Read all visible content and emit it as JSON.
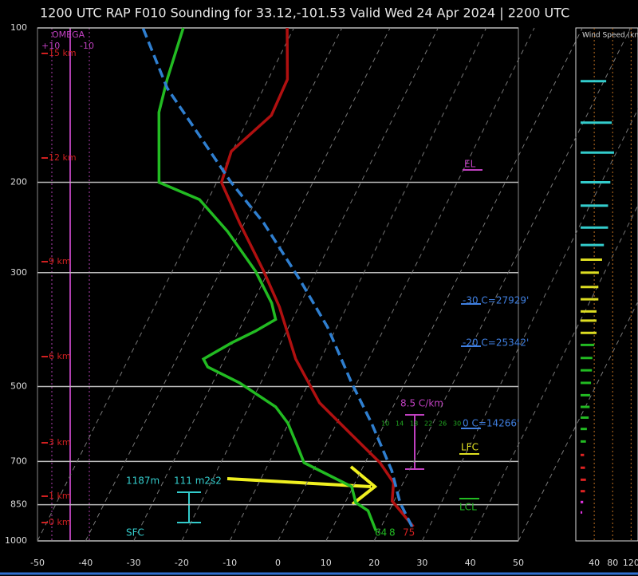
{
  "chart_data": {
    "type": "skewt",
    "title": "1200 UTC RAP F010 Sounding for 33.12,-101.53 Valid  Wed 24 Apr 2024 | 2200 UTC",
    "ylim": [
      1000,
      100
    ],
    "yticks": [
      100,
      200,
      300,
      500,
      700,
      850,
      1000
    ],
    "xlim": [
      -50,
      50
    ],
    "xticks": [
      -50,
      -40,
      -30,
      -20,
      -10,
      0,
      10,
      20,
      30,
      40,
      50
    ],
    "series": [
      {
        "color": "#b01010",
        "pressure": [
          938,
          836,
          770,
          704,
          621,
          538,
          442,
          350,
          298,
          240,
          200,
          174,
          148,
          126,
          100
        ],
        "values": [
          26.7,
          19.6,
          18,
          13.1,
          4.3,
          -5.7,
          -15.2,
          -24,
          -31,
          -41,
          -49,
          -50.2,
          -45.6,
          -46,
          -51.4
        ]
      },
      {
        "color": "#22bb22",
        "pressure": [
          955,
          873,
          842,
          784,
          704,
          655,
          589,
          548,
          492,
          458,
          442,
          411,
          390,
          370,
          344,
          298,
          249,
          216,
          200,
          146,
          126,
          100
        ],
        "values": [
          19.3,
          15.6,
          12.2,
          9.7,
          -2.7,
          -5.7,
          -10.2,
          -14.4,
          -24.4,
          -32.7,
          -34.4,
          -30.2,
          -26.5,
          -23.5,
          -26,
          -32.7,
          -42.7,
          -51.8,
          -62,
          -69.3,
          -71,
          -73
        ]
      },
      {
        "color": "#2f7fd0",
        "dashed": true,
        "pressure": [
          938,
          842,
          730,
          589,
          492,
          383,
          309,
          240,
          200,
          162,
          131,
          100
        ],
        "values": [
          26.4,
          21.4,
          16.4,
          7.2,
          -1.1,
          -11.9,
          -22.7,
          -36,
          -47,
          -58.5,
          -70.1,
          -81.4
        ]
      }
    ],
    "wind": {
      "title": "Wind Speed (knots)",
      "xlim": [
        0,
        135
      ],
      "xticks": [
        40,
        80,
        120
      ],
      "pressure": [
        127,
        153,
        175,
        200,
        222,
        245,
        265,
        283,
        300,
        320,
        338,
        357,
        372,
        393,
        415,
        440,
        465,
        492,
        520,
        548,
        575,
        605,
        640,
        680,
        720,
        760,
        800,
        840,
        880
      ],
      "values": [
        66,
        78,
        83,
        75,
        70,
        70,
        61,
        57,
        50,
        49,
        49,
        45,
        45,
        45,
        40,
        36,
        35,
        33,
        31,
        30,
        28,
        24,
        22,
        18,
        20,
        22,
        20,
        16,
        14
      ],
      "colors": [
        "#33cccc",
        "#33cccc",
        "#33cccc",
        "#33cccc",
        "#33cccc",
        "#33cccc",
        "#33cccc",
        "#dddd22",
        "#dddd22",
        "#dddd22",
        "#dddd22",
        "#dddd22",
        "#dddd22",
        "#dddd22",
        "#22bb22",
        "#22bb22",
        "#22bb22",
        "#22bb22",
        "#22bb22",
        "#22bb22",
        "#22bb22",
        "#22bb22",
        "#22bb22",
        "#dd2222",
        "#dd2222",
        "#dd2222",
        "#dd2222",
        "#dd33dd",
        "#dd33dd"
      ]
    },
    "omega": {
      "title": "OMEGA",
      "left": "+10",
      "right": "-10"
    },
    "heights": [
      "15 km",
      "12 km",
      "9 km",
      "6 km",
      "3 km",
      "1 km",
      "0 km"
    ],
    "annotations": {
      "el": "EL",
      "m30": "-30 C=27929'",
      "m20": "-20 C=25342'",
      "zero": "0 C=14266'",
      "lapse": "8.5 C/km",
      "lfc": "LFC",
      "lcl": "LCL",
      "depth": "1187m",
      "srh": "111 m2s2",
      "sfc": "SFC",
      "t1": "64",
      "t2": "8",
      "t3": "75",
      "lr": [
        "10",
        "14",
        "18",
        "22",
        "26",
        "30"
      ]
    }
  }
}
